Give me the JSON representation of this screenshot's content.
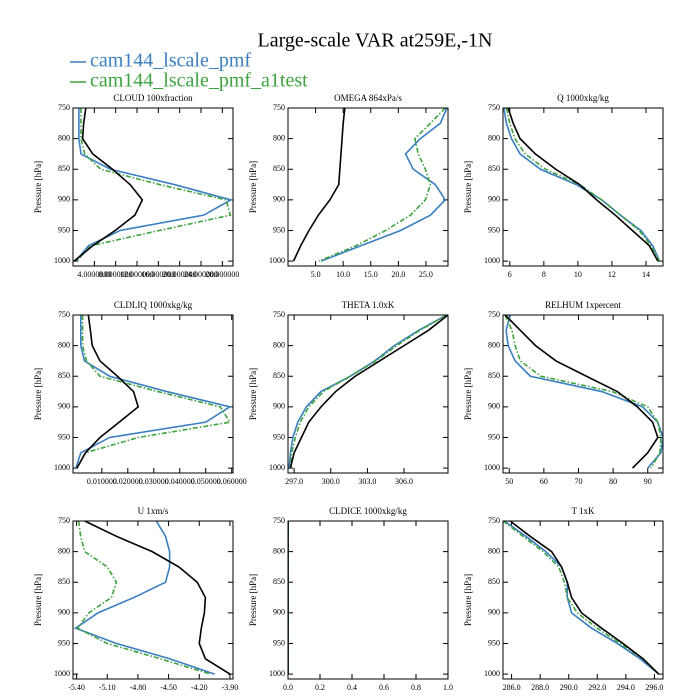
{
  "title": "Large-scale VAR at259E,-1N",
  "chart_data": [
    {
      "type": "line",
      "title": "CLOUD  100xfraction",
      "ylabel": "Pressure [hPa]",
      "y_inverted": true,
      "y": [
        750,
        775,
        800,
        825,
        850,
        875,
        900,
        925,
        950,
        975,
        1000
      ],
      "ylim": [
        750,
        1008
      ],
      "yticks": [
        750,
        800,
        850,
        900,
        950,
        1000
      ],
      "xlim": [
        0,
        30
      ],
      "xticks": [
        {
          "value": 4,
          "label": "4.0000000"
        },
        {
          "value": 8,
          "label": "8.0000000"
        },
        {
          "value": 12,
          "label": "12.000000"
        },
        {
          "value": 16,
          "label": "16.000000"
        },
        {
          "value": 20,
          "label": "20.000000"
        },
        {
          "value": 24,
          "label": "24.000000"
        },
        {
          "value": 28,
          "label": "28.000000"
        }
      ],
      "series": [
        {
          "name": "cam144_lscale_pmf",
          "color": "#3b7fc0",
          "style": "solid",
          "values": [
            1.1,
            1.1,
            1.1,
            1.5,
            7,
            19,
            29.6,
            24.5,
            8.8,
            2.9,
            0.5
          ]
        },
        {
          "name": "cam144_lscale_pmf_a1test",
          "color": "#3ea33e",
          "style": "dashdot",
          "values": [
            1.5,
            1.5,
            1.5,
            2.2,
            5.2,
            16.2,
            28.7,
            29.5,
            16.2,
            3.3,
            0.7
          ]
        },
        {
          "color": "#000000",
          "style": "solid",
          "values": [
            2.4,
            2,
            1.8,
            3.7,
            7.4,
            10.7,
            13,
            11.6,
            7.9,
            3.7,
            0.2
          ]
        }
      ]
    },
    {
      "type": "line",
      "title": "OMEGA  864xPa/s",
      "ylabel": "Pressure [hPa]",
      "y_inverted": true,
      "y": [
        750,
        775,
        800,
        825,
        850,
        875,
        900,
        925,
        950,
        975,
        1000
      ],
      "ylim": [
        750,
        1008
      ],
      "yticks": [
        750,
        800,
        850,
        900,
        950,
        1000
      ],
      "xlim": [
        0,
        29
      ],
      "xticks": [
        {
          "value": 5,
          "label": "5.0"
        },
        {
          "value": 10,
          "label": "10.0"
        },
        {
          "value": 15,
          "label": "15.0"
        },
        {
          "value": 20,
          "label": "20.0"
        },
        {
          "value": 25,
          "label": "25.0"
        }
      ],
      "series": [
        {
          "name": "cam144_lscale_pmf",
          "color": "#3b7fc0",
          "style": "solid",
          "values": [
            28.8,
            27.6,
            24,
            21.3,
            22.7,
            26.7,
            28.5,
            25.8,
            20.4,
            13.2,
            6
          ]
        },
        {
          "name": "cam144_lscale_pmf_a1test",
          "color": "#3ea33e",
          "style": "dashdot",
          "values": [
            28.5,
            25.8,
            23,
            23.6,
            24.9,
            25.8,
            24.9,
            22.2,
            17.7,
            12.3,
            5.6
          ]
        },
        {
          "color": "#000000",
          "style": "solid",
          "values": [
            10.3,
            10,
            9.8,
            9.6,
            9.4,
            9.2,
            7.6,
            5.5,
            3.8,
            2.3,
            1
          ]
        }
      ]
    },
    {
      "type": "line",
      "title": "Q  1000xkg/kg",
      "ylabel": "Pressure [hPa]",
      "y_inverted": true,
      "y": [
        750,
        775,
        800,
        825,
        850,
        875,
        900,
        925,
        950,
        975,
        1000
      ],
      "ylim": [
        750,
        1008
      ],
      "yticks": [
        750,
        800,
        850,
        900,
        950,
        1000
      ],
      "xlim": [
        5.6,
        15.0
      ],
      "xticks": [
        6,
        8,
        10,
        12,
        14
      ],
      "series": [
        {
          "name": "cam144_lscale_pmf",
          "color": "#3b7fc0",
          "style": "solid",
          "values": [
            5.65,
            5.8,
            6.1,
            6.6,
            7.8,
            9.9,
            11.4,
            12.5,
            13.7,
            14.4,
            14.8
          ]
        },
        {
          "name": "cam144_lscale_pmf_a1test",
          "color": "#3ea33e",
          "style": "dashdot",
          "values": [
            5.8,
            6,
            6.3,
            6.9,
            8.1,
            10.1,
            11.4,
            12.5,
            13.6,
            14.3,
            14.8
          ]
        },
        {
          "color": "#000000",
          "style": "solid",
          "values": [
            5.9,
            6.2,
            6.6,
            7.5,
            8.7,
            10.1,
            11.1,
            12.2,
            13.2,
            14.2,
            14.7
          ]
        }
      ]
    },
    {
      "type": "line",
      "title": "CLDLIQ  1000xkg/kg",
      "ylabel": "Pressure [hPa]",
      "y_inverted": true,
      "y": [
        750,
        775,
        800,
        825,
        850,
        875,
        900,
        925,
        950,
        975,
        1000
      ],
      "ylim": [
        750,
        1008
      ],
      "yticks": [
        750,
        800,
        850,
        900,
        950,
        1000
      ],
      "xlim": [
        -0.0011,
        0.0605
      ],
      "xticks": [
        {
          "value": 0.01,
          "label": "0.010000"
        },
        {
          "value": 0.02,
          "label": "0.020000"
        },
        {
          "value": 0.03,
          "label": "0.030000"
        },
        {
          "value": 0.04,
          "label": "0.040000"
        },
        {
          "value": 0.05,
          "label": "0.050000"
        },
        {
          "value": 0.06,
          "label": "0.060000"
        }
      ],
      "series": [
        {
          "name": "cam144_lscale_pmf",
          "color": "#3b7fc0",
          "style": "solid",
          "values": [
            0.0019,
            0.0019,
            0.0019,
            0.0033,
            0.013,
            0.035,
            0.0593,
            0.05,
            0.013,
            0.0019,
            0
          ]
        },
        {
          "name": "cam144_lscale_pmf_a1test",
          "color": "#3ea33e",
          "style": "dashdot",
          "values": [
            0.0026,
            0.0026,
            0.0026,
            0.0041,
            0.0093,
            0.0315,
            0.0556,
            0.0593,
            0.024,
            0.0037,
            0.0004
          ]
        },
        {
          "color": "#000000",
          "style": "solid",
          "values": [
            0.0048,
            0.0056,
            0.0063,
            0.0093,
            0.016,
            0.0222,
            0.024,
            0.0167,
            0.0093,
            0.0037,
            0.0004
          ]
        }
      ]
    },
    {
      "type": "line",
      "title": "THETA  1.0xK",
      "ylabel": "Pressure [hPa]",
      "y_inverted": true,
      "y": [
        750,
        775,
        800,
        825,
        850,
        875,
        900,
        925,
        950,
        975,
        1000
      ],
      "ylim": [
        750,
        1008
      ],
      "yticks": [
        750,
        800,
        850,
        900,
        950,
        1000
      ],
      "xlim": [
        296.5,
        309.6
      ],
      "xticks": [
        {
          "value": 297,
          "label": "297.0"
        },
        {
          "value": 300,
          "label": "300.0"
        },
        {
          "value": 303,
          "label": "303.0"
        },
        {
          "value": 306,
          "label": "306.0"
        }
      ],
      "series": [
        {
          "name": "cam144_lscale_pmf",
          "color": "#3b7fc0",
          "style": "solid",
          "values": [
            309.5,
            307.2,
            305.2,
            303.6,
            301.6,
            299.2,
            298,
            297.3,
            296.9,
            296.7,
            296.6
          ]
        },
        {
          "name": "cam144_lscale_pmf_a1test",
          "color": "#3ea33e",
          "style": "dashdot",
          "values": [
            309.5,
            307.3,
            305.4,
            303.7,
            301.6,
            299.4,
            298.2,
            297.5,
            297.1,
            296.8,
            296.7
          ]
        },
        {
          "color": "#000000",
          "style": "solid",
          "values": [
            309.6,
            308,
            306,
            304,
            302,
            300.4,
            299.2,
            298.2,
            297.6,
            297,
            296.7
          ]
        }
      ]
    },
    {
      "type": "line",
      "title": "RELHUM  1xpercent",
      "ylabel": "Pressure [hPa]",
      "y_inverted": true,
      "y": [
        750,
        775,
        800,
        825,
        850,
        875,
        900,
        925,
        950,
        975,
        1000
      ],
      "ylim": [
        750,
        1008
      ],
      "yticks": [
        750,
        800,
        850,
        900,
        950,
        1000
      ],
      "xlim": [
        48.2,
        94.4
      ],
      "xticks": [
        50,
        60,
        70,
        80,
        90
      ],
      "series": [
        {
          "name": "cam144_lscale_pmf",
          "color": "#3b7fc0",
          "style": "solid",
          "values": [
            50.3,
            49.1,
            49.7,
            51.7,
            56.1,
            76.7,
            88.5,
            92.9,
            94.4,
            93.8,
            90
          ]
        },
        {
          "name": "cam144_lscale_pmf_a1test",
          "color": "#3ea33e",
          "style": "dashdot",
          "values": [
            48.8,
            50.8,
            51.7,
            53.2,
            59.1,
            79.7,
            90,
            92.9,
            93.8,
            93.5,
            90.9
          ]
        },
        {
          "color": "#000000",
          "style": "solid",
          "values": [
            48.8,
            53.2,
            57.6,
            63.5,
            72.3,
            81.2,
            87,
            91.4,
            92.9,
            90,
            85.6
          ]
        }
      ]
    },
    {
      "type": "line",
      "title": "U  1xm/s",
      "ylabel": "Pressure [hPa]",
      "y_inverted": true,
      "y": [
        750,
        775,
        800,
        825,
        850,
        875,
        900,
        925,
        950,
        975,
        1000
      ],
      "ylim": [
        750,
        1008
      ],
      "yticks": [
        750,
        800,
        850,
        900,
        950,
        1000
      ],
      "xlim": [
        -5.435,
        -3.87
      ],
      "xticks": [
        {
          "value": -5.4,
          "label": "-5.40"
        },
        {
          "value": -5.1,
          "label": "-5.10"
        },
        {
          "value": -4.8,
          "label": "-4.80"
        },
        {
          "value": -4.5,
          "label": "-4.50"
        },
        {
          "value": -4.2,
          "label": "-4.20"
        },
        {
          "value": -3.9,
          "label": "-3.90"
        }
      ],
      "series": [
        {
          "name": "cam144_lscale_pmf",
          "color": "#3b7fc0",
          "style": "solid",
          "values": [
            -4.62,
            -4.53,
            -4.49,
            -4.49,
            -4.53,
            -4.84,
            -5.19,
            -5.41,
            -5.01,
            -4.49,
            -4.05
          ]
        },
        {
          "name": "cam144_lscale_pmf_a1test",
          "color": "#3ea33e",
          "style": "dashdot",
          "values": [
            -5.38,
            -5.36,
            -5.32,
            -5.1,
            -5.01,
            -5.06,
            -5.28,
            -5.39,
            -5.1,
            -4.58,
            -4.09
          ]
        },
        {
          "color": "#000000",
          "style": "solid",
          "values": [
            -5.32,
            -5.01,
            -4.66,
            -4.4,
            -4.22,
            -4.14,
            -4.15,
            -4.18,
            -4.2,
            -4.14,
            -3.9
          ]
        }
      ]
    },
    {
      "type": "line",
      "title": "CLDICE  1000xkg/kg",
      "ylabel": "Pressure [hPa]",
      "y_inverted": true,
      "y": [
        750,
        775,
        800,
        825,
        850,
        875,
        900,
        925,
        950,
        975,
        1000
      ],
      "ylim": [
        750,
        1008
      ],
      "yticks": [
        750,
        800,
        850,
        900,
        950,
        1000
      ],
      "xlim": [
        0,
        1
      ],
      "xticks": [
        {
          "value": 0,
          "label": "0.0"
        },
        {
          "value": 0.2,
          "label": "0.2"
        },
        {
          "value": 0.4,
          "label": "0.4"
        },
        {
          "value": 0.6,
          "label": "0.6"
        },
        {
          "value": 0.8,
          "label": "0.8"
        },
        {
          "value": 1,
          "label": "1.0"
        }
      ],
      "series": [
        {
          "name": "cam144_lscale_pmf",
          "color": "#3b7fc0",
          "style": "solid",
          "values": [
            0,
            0,
            0,
            0,
            0,
            0,
            0,
            0,
            0,
            0,
            0
          ]
        },
        {
          "name": "cam144_lscale_pmf_a1test",
          "color": "#3ea33e",
          "style": "dashdot",
          "values": [
            0,
            0,
            0,
            0,
            0,
            0,
            0,
            0,
            0,
            0,
            0
          ]
        },
        {
          "color": "#000000",
          "style": "solid",
          "values": [
            0,
            0,
            0,
            0,
            0,
            0,
            0,
            0,
            0,
            0,
            0
          ]
        }
      ]
    },
    {
      "type": "line",
      "title": "T  1xK",
      "ylabel": "Pressure [hPa]",
      "y_inverted": true,
      "y": [
        750,
        775,
        800,
        825,
        850,
        875,
        900,
        925,
        950,
        975,
        1000
      ],
      "ylim": [
        750,
        1008
      ],
      "yticks": [
        750,
        800,
        850,
        900,
        950,
        1000
      ],
      "xlim": [
        285.4,
        296.6
      ],
      "xticks": [
        {
          "value": 286,
          "label": "286.0"
        },
        {
          "value": 288,
          "label": "288.0"
        },
        {
          "value": 290,
          "label": "290.0"
        },
        {
          "value": 292,
          "label": "292.0"
        },
        {
          "value": 294,
          "label": "294.0"
        },
        {
          "value": 296,
          "label": "296.0"
        }
      ],
      "series": [
        {
          "name": "cam144_lscale_pmf",
          "color": "#3b7fc0",
          "style": "solid",
          "values": [
            285.5,
            287,
            288.4,
            289.5,
            289.9,
            289.9,
            290.2,
            291.6,
            293.4,
            295,
            296.3
          ]
        },
        {
          "name": "cam144_lscale_pmf_a1test",
          "color": "#3ea33e",
          "style": "dashdot",
          "values": [
            285.4,
            286.8,
            288.2,
            289.3,
            289.7,
            289.9,
            290.6,
            292,
            293.6,
            295.2,
            296.3
          ]
        },
        {
          "color": "#000000",
          "style": "solid",
          "values": [
            285.9,
            287.3,
            288.8,
            289.5,
            289.9,
            290.2,
            290.9,
            292.3,
            293.8,
            295.2,
            296.3
          ]
        }
      ]
    }
  ]
}
